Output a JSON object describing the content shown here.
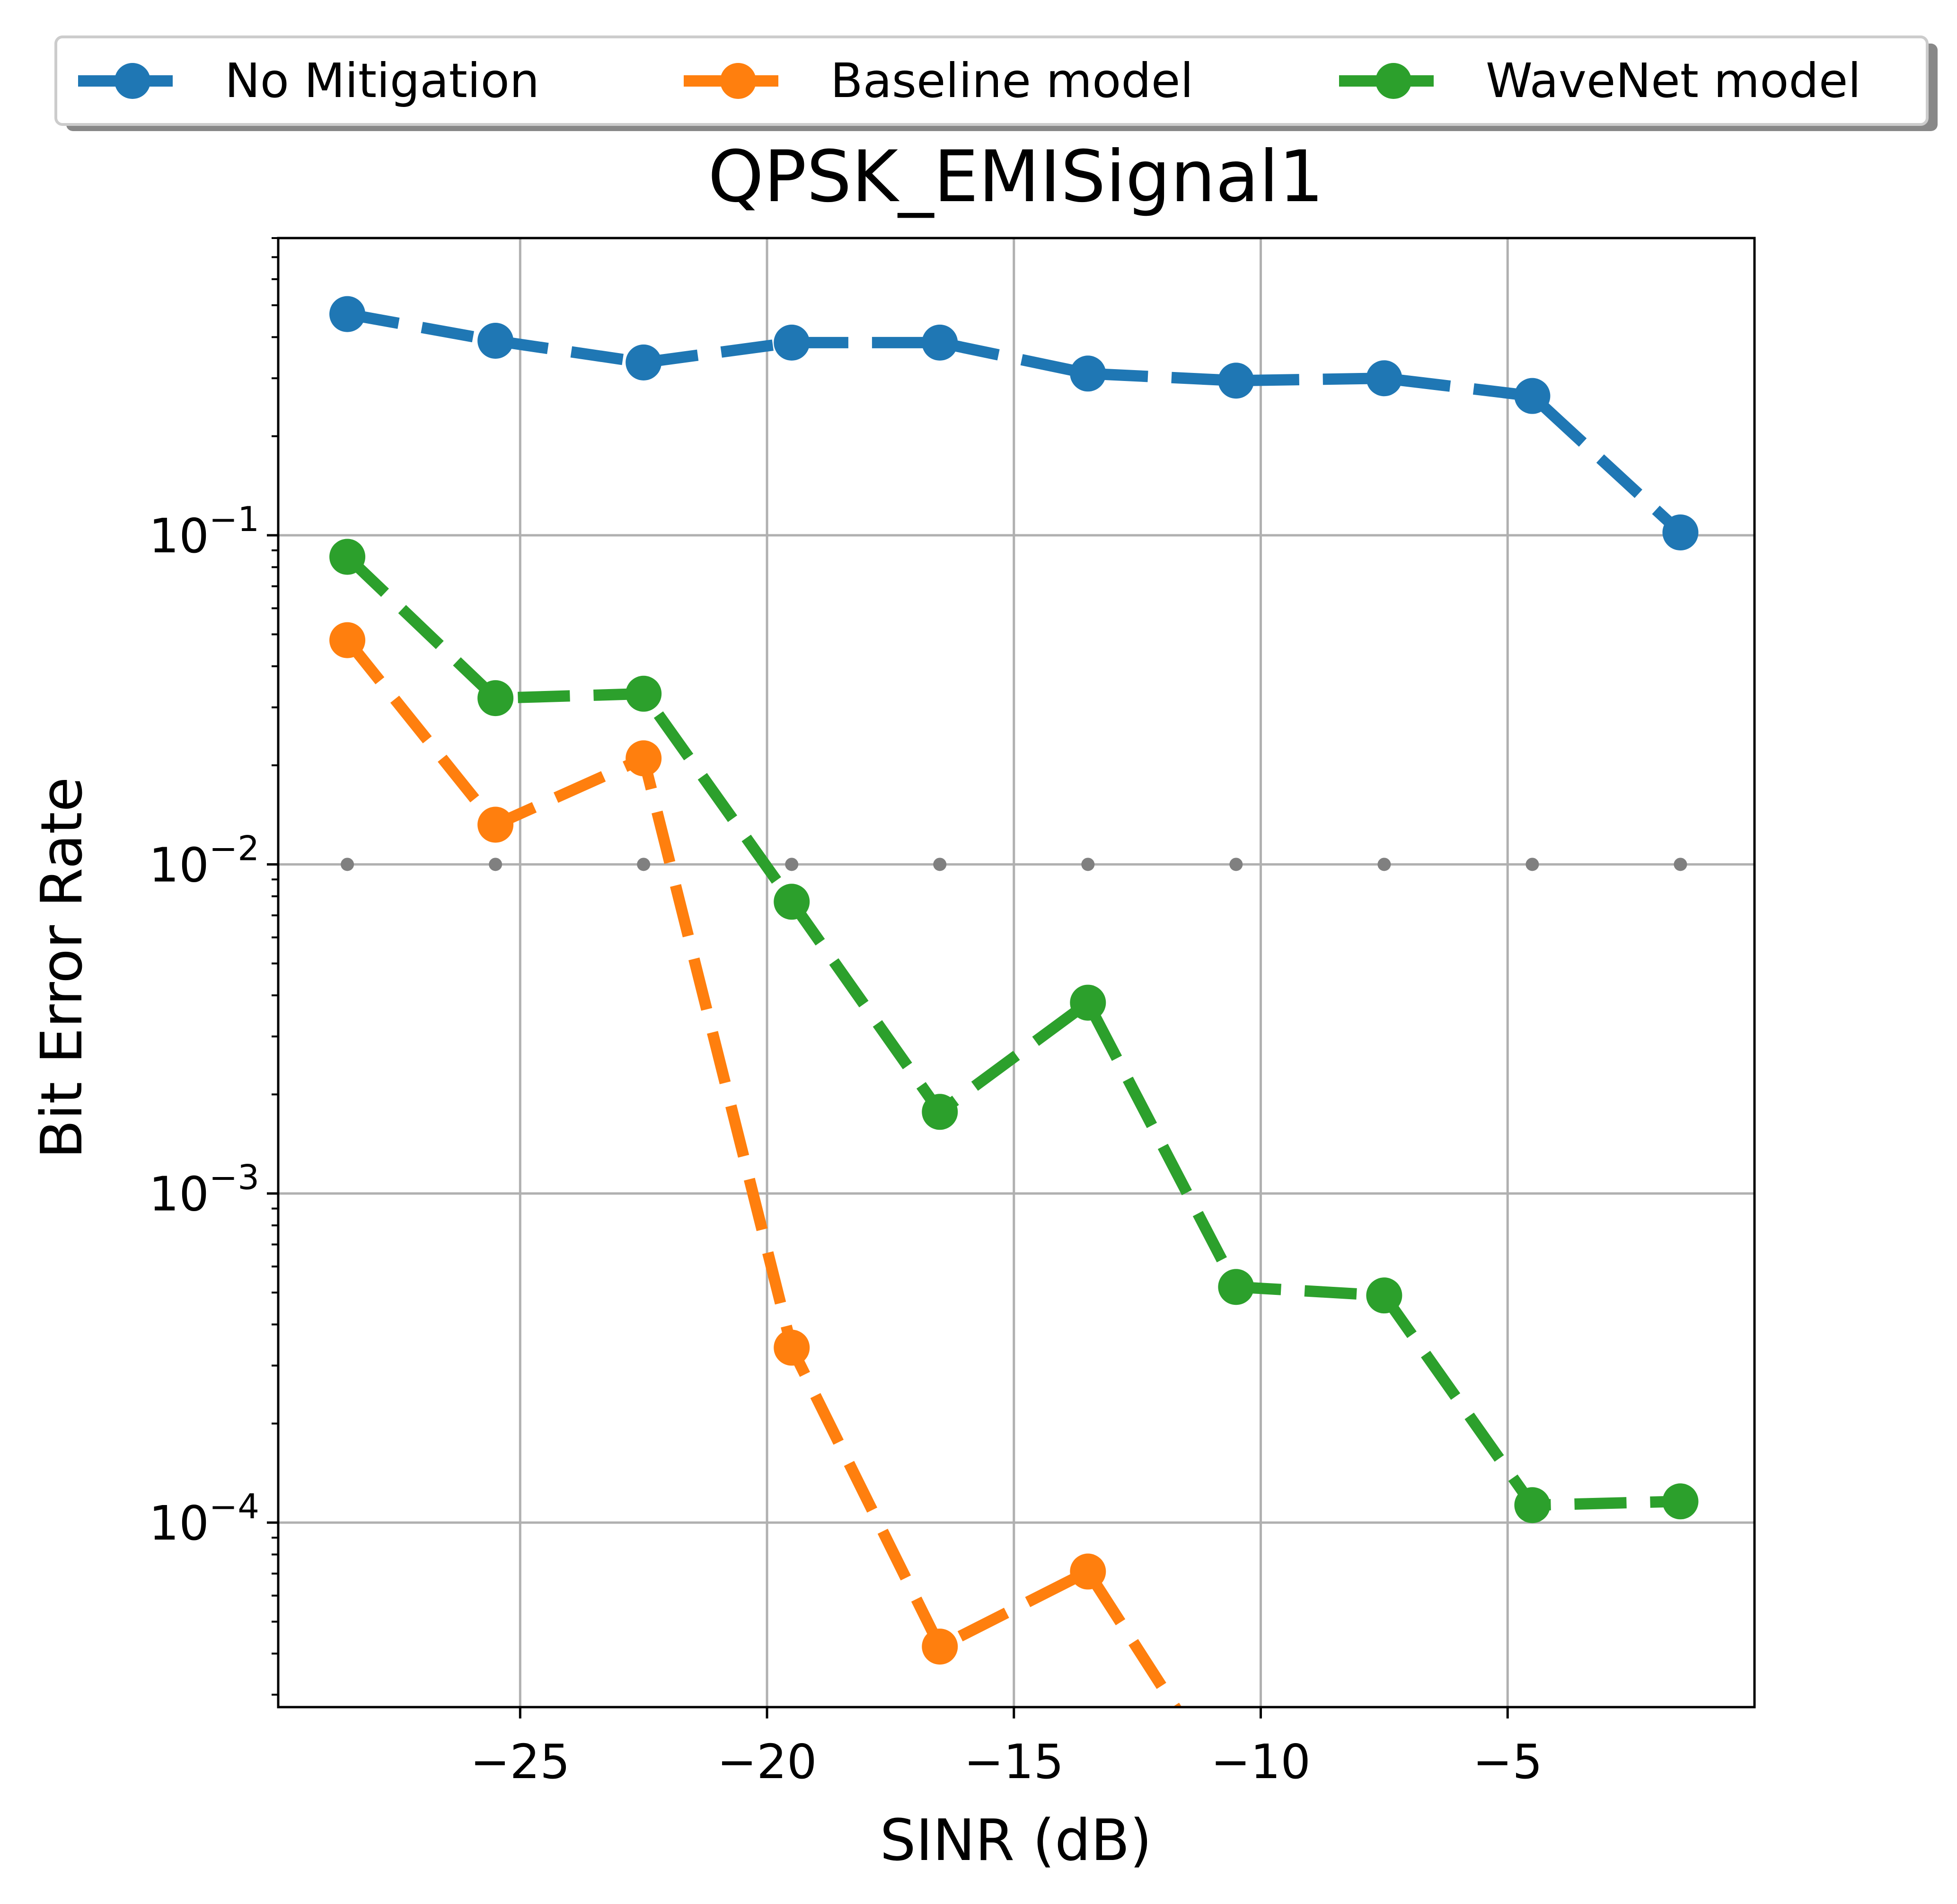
{
  "chart_data": {
    "type": "line",
    "title": "QPSK_EMISignal1",
    "xlabel": "SINR (dB)",
    "ylabel": "Bit Error Rate",
    "yscale": "log",
    "xlim": [
      -29.9,
      0.0
    ],
    "ylim": [
      2.75e-05,
      0.8
    ],
    "xticks": [
      -25,
      -20,
      -15,
      -10,
      -5
    ],
    "xtick_labels": [
      "−25",
      "−20",
      "−15",
      "−10",
      "−5"
    ],
    "yticks": [
      0.1,
      0.01,
      0.001,
      0.0001
    ],
    "ytick_labels": [
      {
        "base": "10",
        "exp": "−1"
      },
      {
        "base": "10",
        "exp": "−2"
      },
      {
        "base": "10",
        "exp": "−3"
      },
      {
        "base": "10",
        "exp": "−4"
      }
    ],
    "grid": true,
    "legend_placement": "top, above plot, 3 columns",
    "x": [
      -28.5,
      -25.5,
      -22.5,
      -19.5,
      -16.5,
      -13.5,
      -10.5,
      -7.5,
      -4.5,
      -1.5
    ],
    "series": [
      {
        "name": "No Mitigation",
        "color": "#1f77b4",
        "linestyle": "dashed",
        "marker": "circle",
        "values": [
          0.47,
          0.39,
          0.335,
          0.385,
          0.385,
          0.31,
          0.295,
          0.3,
          0.265,
          0.102
        ]
      },
      {
        "name": "Baseline model",
        "color": "#ff7f0e",
        "linestyle": "dashed",
        "marker": "circle",
        "values": [
          0.048,
          0.0132,
          0.021,
          0.00034,
          4.2e-05,
          7.1e-05,
          0,
          null,
          null,
          null
        ]
      },
      {
        "name": "WaveNet model",
        "color": "#2ca02c",
        "linestyle": "dashed",
        "marker": "circle",
        "values": [
          0.086,
          0.032,
          0.033,
          0.0077,
          0.00177,
          0.0038,
          0.00052,
          0.00049,
          0.000113,
          0.000116
        ]
      }
    ],
    "extra_markers": {
      "color": "#808080",
      "marker": "small dot",
      "x": [
        -28.5,
        -25.5,
        -22.5,
        -19.5,
        -16.5,
        -13.5,
        -10.5,
        -7.5,
        -4.5,
        -1.5
      ],
      "y": 0.01
    }
  }
}
